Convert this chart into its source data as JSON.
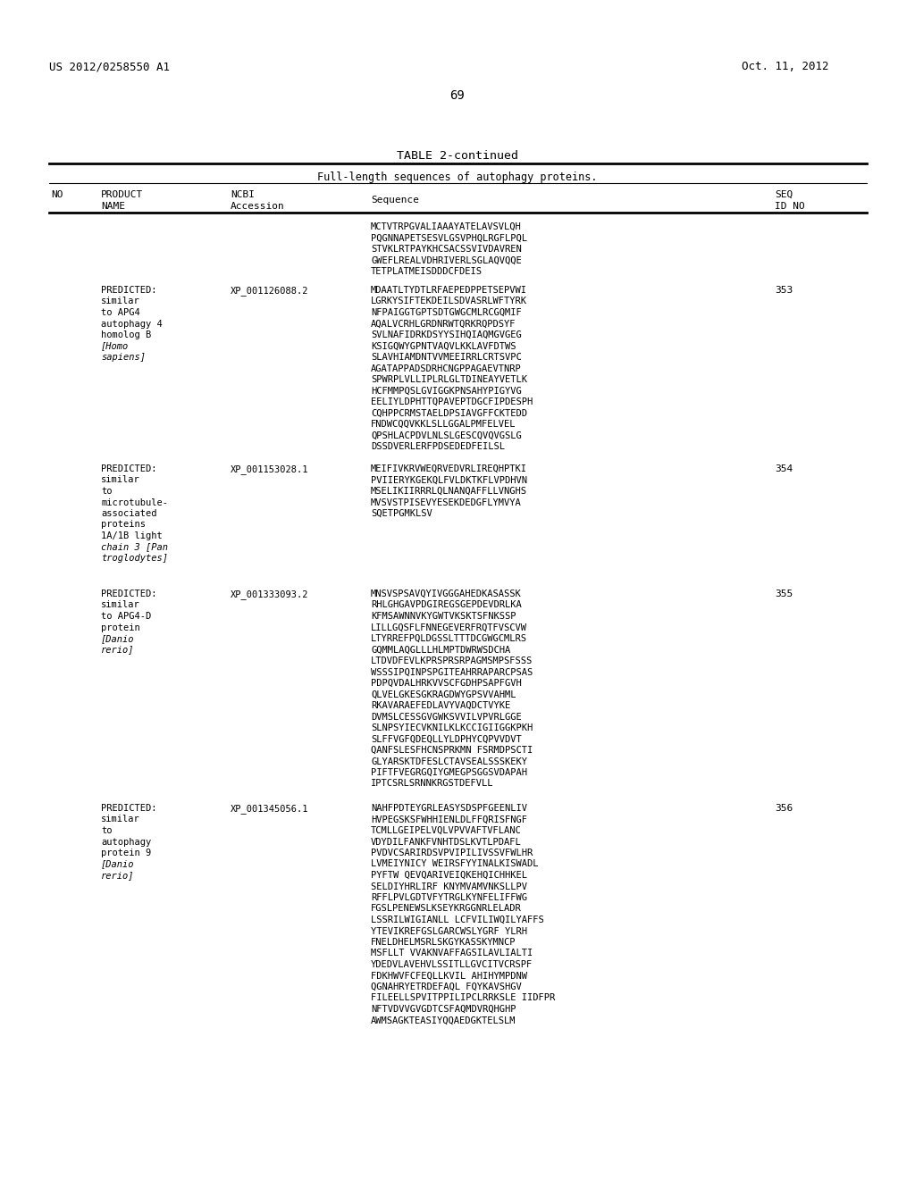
{
  "header_left": "US 2012/0258550 A1",
  "header_right": "Oct. 11, 2012",
  "page_number": "69",
  "table_title": "TABLE 2-continued",
  "table_subtitle": "Full-length sequences of autophagy proteins.",
  "rows": [
    {
      "product": "",
      "accession": "",
      "sequence": [
        "MCTVTRPGVALIAAAYATELAVSVLQH",
        "PQGNNAPETSESVLGSVPHQLRGFLPQL",
        "STVKLRTPAYKHCSACSSVIVDAVREN",
        "GWEFLREALVDHRIVERLSGLAQVQQE",
        "TETPLATMEISDDDCFDEIS"
      ],
      "seq_id": ""
    },
    {
      "product": [
        "PREDICTED:",
        "similar",
        "to APG4",
        "autophagy 4",
        "homolog B",
        "[Homo",
        "sapiens]"
      ],
      "product_italic": [
        false,
        false,
        false,
        false,
        false,
        true,
        true
      ],
      "accession": "XP_001126088.2",
      "sequence": [
        "MDAATLTYDTLRFAEPEDPPETSEPVWI",
        "LGRKYSIFTEKDEILSDVASRLWFTYRK",
        "NFPAIGGTGPTSDTGWGCMLRCGQMIF",
        "AQALVCRHLGRDNRWTQRKRQPDSYF",
        "SVLNAFIDRKDSYYSIHQIAQMGVGEG",
        "KSIGQWYGPNTVAQVLKKLAVFDTWS",
        "SLAVHIAMDNTVVMEEIRRLCRTSVPC",
        "AGATAPPADSDRHCNGPPAGAEVTNRP",
        "SPWRPLVLLIPLRLGLTDINEAYVETLK",
        "HCFMMPQSLGVIGGKPNSAHYPIGYVG",
        "EELIYLDPHTTQPAVEPTDGCFIPDESPH",
        "CQHPPCRMSTAELDPSIAVGFFCKTEDD",
        "FNDWCQQVKKLSLLGGALPMFELVEL",
        "QPSHLACPDVLNLSLGESCQVQVGSLG",
        "DSSDVERLERFPDSEDEDFEILSL"
      ],
      "seq_id": "353"
    },
    {
      "product": [
        "PREDICTED:",
        "similar",
        "to",
        "microtubule-",
        "associated",
        "proteins",
        "1A/1B light",
        "chain 3 [Pan",
        "troglodytes]"
      ],
      "product_italic": [
        false,
        false,
        false,
        false,
        false,
        false,
        false,
        true,
        true
      ],
      "accession": "XP_001153028.1",
      "sequence": [
        "MEIFIVKRVWEQRVEDVRLIREQHPTKI",
        "PVIIERYKGEKQLFVLDKTKFLVPDHVN",
        "MSELIKIIRRRLQLNANQAFFLLVNGHS",
        "MVSVSTPISEVYESEKDEDGFLYMVYA",
        "SQETPGMKLSV"
      ],
      "seq_id": "354"
    },
    {
      "product": [
        "PREDICTED:",
        "similar",
        "to APG4-D",
        "protein",
        "[Danio",
        "rerio]"
      ],
      "product_italic": [
        false,
        false,
        false,
        false,
        true,
        true
      ],
      "accession": "XP_001333093.2",
      "sequence": [
        "MNSVSPSAVQYIVGGGAHEDKASASSK",
        "RHLGHGAVPDGIREGSGEPDEVDRLKA",
        "KFMSAWNNVKYGWTVKSKTSFNKSSP",
        "LILLGQSFLFNNEGEVERFRQTFVSCVW",
        "LTYRREFPQLDGSSLTTTDCGWGCMLRS",
        "GQMMLAQGLLLHLMPTDWRWSDCHA",
        "LTDVDFEVLKPRSPRSRPAGMSMPSFSSS",
        "WSSSIPQINPSPGITEAHRRAPARCPSAS",
        "PDPQVDALHRKVVSCFGDHPSAPFGVH",
        "QLVELGKESGKRAGDWYGPSVVAHML",
        "RKAVARAEFEDLAVYVAQDCTVYKE",
        "DVMSLCESSGVGWKSVVILVPVRLGGE",
        "SLNPSYIECVKNILKLKCCIGIIGGKPKH",
        "SLFFVGFQDEQLLYLDPHYCQPVVDVT",
        "QANFSLESFHCNSPRKMN FSRMDPSCTI",
        "GLYARSKTDFESLCTAVSEALSSSKEKY",
        "PIFTFVEGRGQIYGMEGPSGGSVDAPAH",
        "IPTCSRLSRNNKRGSTDEFVLL"
      ],
      "seq_id": "355"
    },
    {
      "product": [
        "PREDICTED:",
        "similar",
        "to",
        "autophagy",
        "protein 9",
        "[Danio",
        "rerio]"
      ],
      "product_italic": [
        false,
        false,
        false,
        false,
        false,
        true,
        true
      ],
      "accession": "XP_001345056.1",
      "sequence": [
        "NAHFPDTEYGRLEASYSDSPFGEENLIV",
        "HVPEGSKSFWHHIENLDLFFQRISFNGF",
        "TCMLLGEIPELVQLVPVVAFTVFLANC",
        "VDYDILFANKFVNHTDSLKVTLPDAFL",
        "PVDVCSARIRDSVPVIPILIVSSVFWLHR",
        "LVMEIYNICY WEIRSFYYINALKISWADL",
        "PYFTW QEVQARIVEIQKEHQICHHKEL",
        "SELDIYHRLIRF KNYMVAMVNKSLLPV",
        "RFFLPVLGDTVFYTRGLKYNFELIFFWG",
        "FGSLPENEWSLKSEYKRGGNRLELADR",
        "LSSRILWIGIANLL LCFVILIWQILYAFFS",
        "YTEVIKREFGSLGARCWSLYGRF YLRH",
        "FNELDHELMSRLSKGYKASSKYMNCP",
        "MSFLLT VVAKNVAFFAGSILAVLIALTI",
        "YDEDVLAVEHVLSSITLLGVCITVCRSPF",
        "FDKHWVFCFEQLLKVIL AHIHYMPDNW",
        "QGNAHRYETRDEFAQL FQYKAVSHGV",
        "FILEELLSPVITPPILIPCLRRKSLE IIDFPR",
        "NFTVDVVGVGDTCSFAQMDVRQHGHP",
        "AWMSAGKTEASIYQQAEDGKTELSLM"
      ],
      "seq_id": "356"
    }
  ],
  "background_color": "#ffffff",
  "text_color": "#000000"
}
